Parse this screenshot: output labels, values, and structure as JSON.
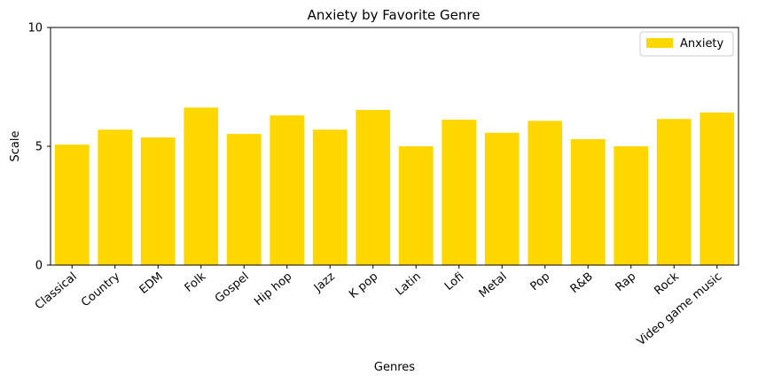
{
  "chart_data": {
    "type": "bar",
    "title": "Anxiety by Favorite Genre",
    "xlabel": "Genres",
    "ylabel": "Scale",
    "ylim": [
      0,
      10
    ],
    "yticks": [
      "0",
      "5",
      "10"
    ],
    "categories": [
      "Classical",
      "Country",
      "EDM",
      "Folk",
      "Gospel",
      "Hip hop",
      "Jazz",
      "K pop",
      "Latin",
      "Lofi",
      "Metal",
      "Pop",
      "R&B",
      "Rap",
      "Rock",
      "Video game music"
    ],
    "series": [
      {
        "name": "Anxiety",
        "color": "#FFD700",
        "values": [
          5.07,
          5.7,
          5.37,
          6.63,
          5.52,
          6.3,
          5.7,
          6.53,
          5.0,
          6.12,
          5.57,
          6.07,
          5.3,
          5.0,
          6.15,
          6.42
        ]
      }
    ],
    "legend": "top-right",
    "grid": false
  }
}
